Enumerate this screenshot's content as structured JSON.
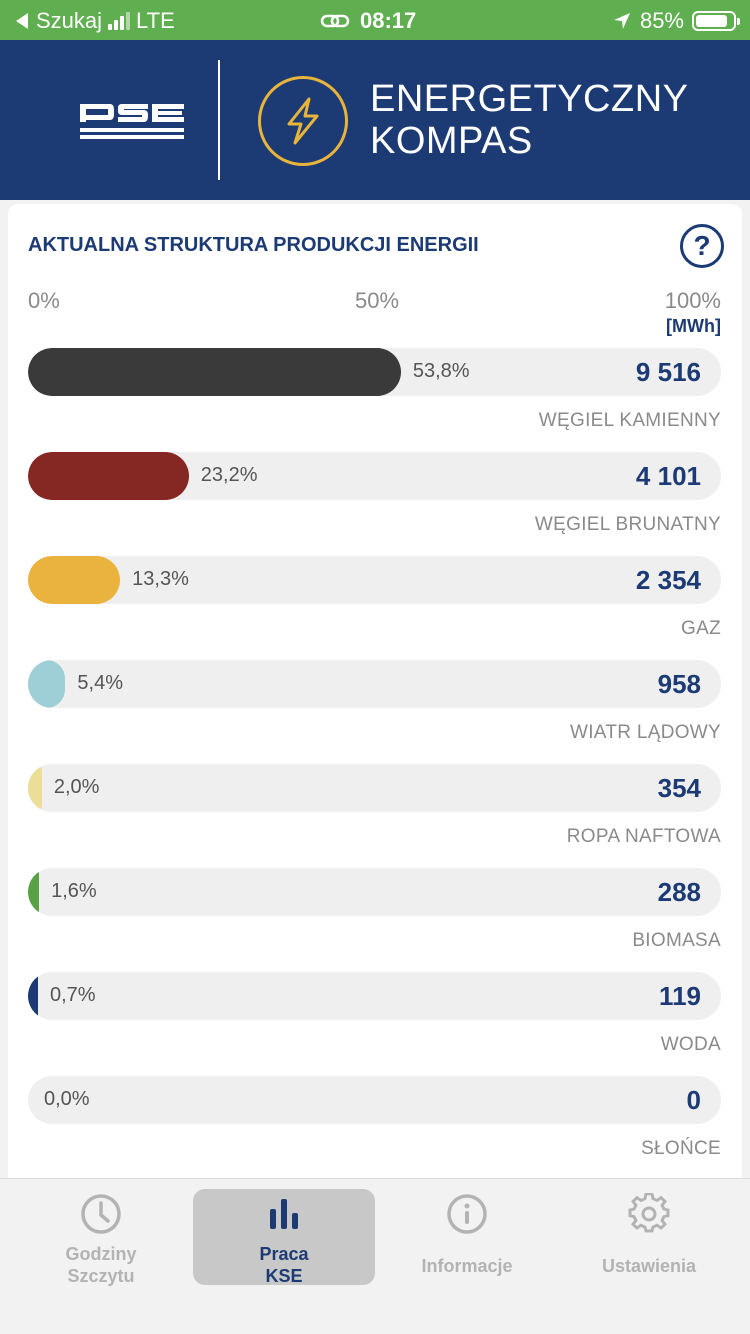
{
  "status_bar": {
    "back_label": "Szukaj",
    "network": "LTE",
    "time": "08:17",
    "battery": "85%"
  },
  "header": {
    "logo_text": "PSE",
    "title_line1": "ENERGETYCZNY",
    "title_line2": "KOMPAS",
    "brand_color": "#1c3a74",
    "accent_color": "#e8b53a"
  },
  "card": {
    "title": "AKTUALNA STRUKTURA PRODUKCJI ENERGII",
    "help_symbol": "?",
    "scale": [
      "0%",
      "50%",
      "100%"
    ],
    "unit": "[MWh]"
  },
  "chart_data": {
    "type": "bar",
    "categories": [
      "WĘGIEL KAMIENNY",
      "WĘGIEL BRUNATNY",
      "GAZ",
      "WIATR LĄDOWY",
      "ROPA NAFTOWA",
      "BIOMASA",
      "WODA",
      "SŁOŃCE"
    ],
    "percent_labels": [
      "53,8%",
      "23,2%",
      "13,3%",
      "5,4%",
      "2,0%",
      "1,6%",
      "0,7%",
      "0,0%"
    ],
    "percent_values": [
      53.8,
      23.2,
      13.3,
      5.4,
      2.0,
      1.6,
      0.7,
      0.0
    ],
    "mwh_labels": [
      "9 516",
      "4 101",
      "2 354",
      "958",
      "354",
      "288",
      "119",
      "0"
    ],
    "mwh_values": [
      9516,
      4101,
      2354,
      958,
      354,
      288,
      119,
      0
    ],
    "colors": [
      "#3a3a3a",
      "#852722",
      "#eab33d",
      "#9ecfd6",
      "#ecdd97",
      "#59a145",
      "#1c3a74",
      "#e7c55a"
    ],
    "xlim": [
      0,
      100
    ]
  },
  "bottom_nav": {
    "items": [
      {
        "label_line1": "Godziny",
        "label_line2": "Szczytu",
        "icon": "clock-icon"
      },
      {
        "label_line1": "Praca",
        "label_line2": "KSE",
        "icon": "bar-chart-icon"
      },
      {
        "label_line1": "Informacje",
        "label_line2": "",
        "icon": "info-icon"
      },
      {
        "label_line1": "Ustawienia",
        "label_line2": "",
        "icon": "gear-icon"
      }
    ]
  }
}
